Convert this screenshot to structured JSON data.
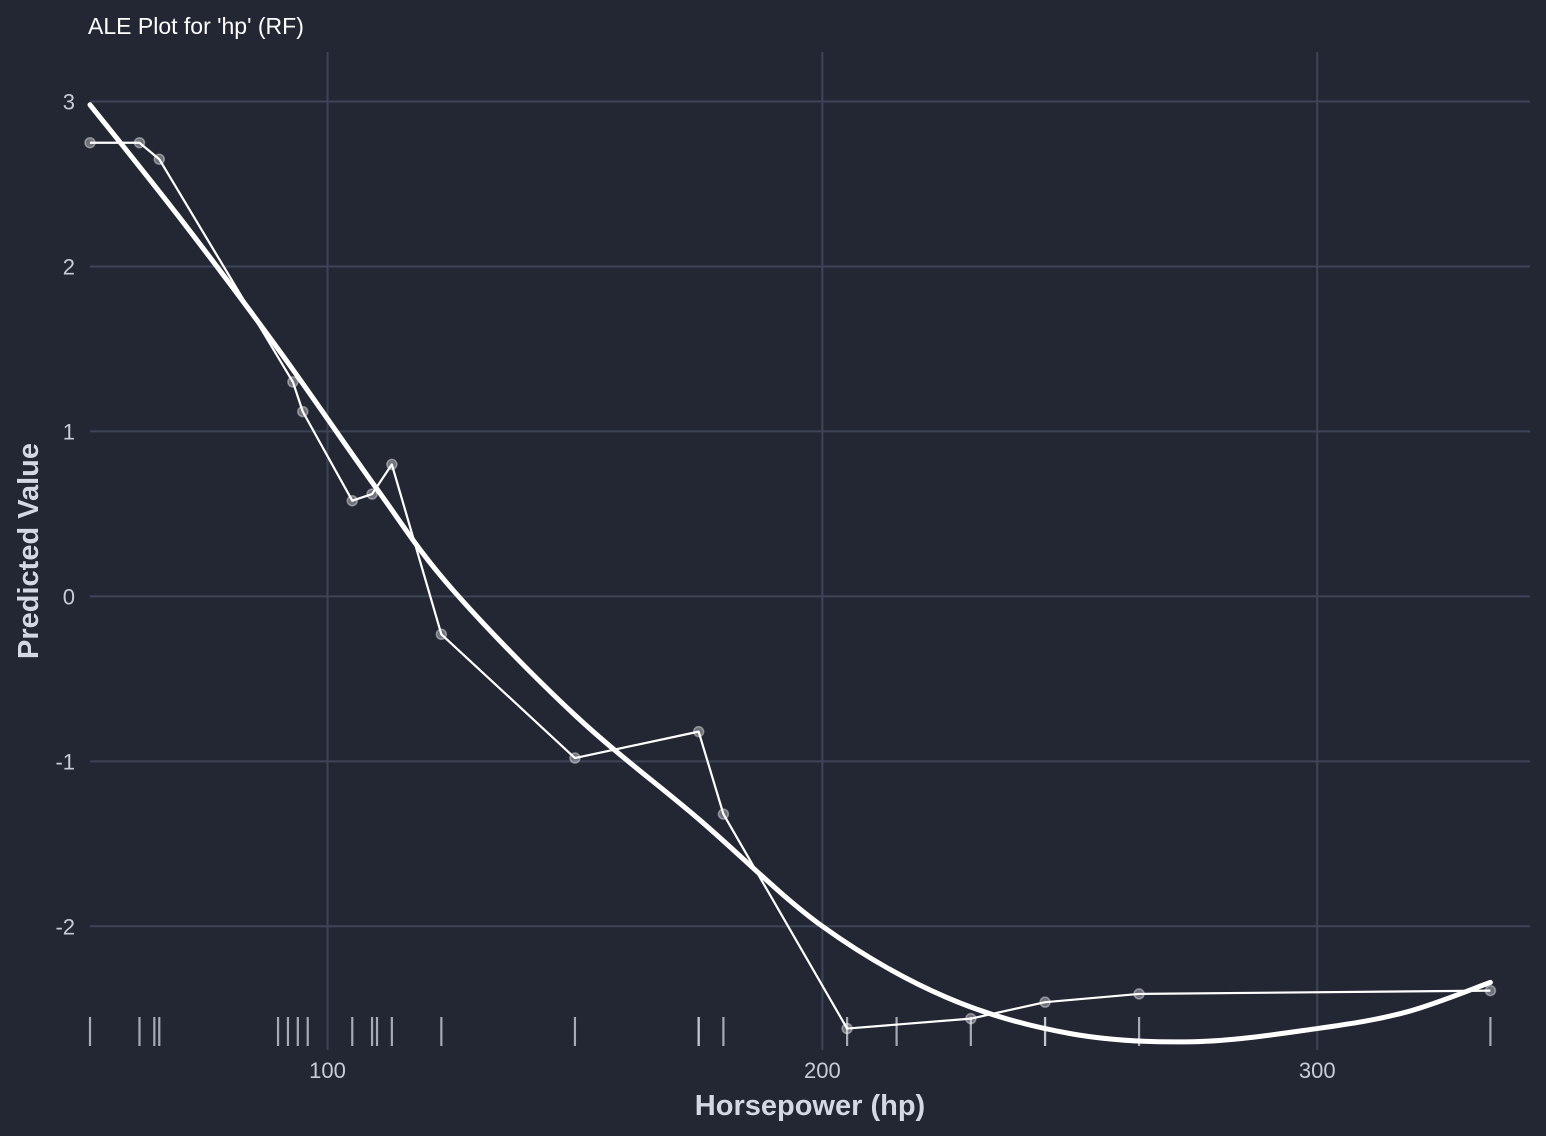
{
  "chart_data": {
    "type": "line",
    "title": "ALE Plot for 'hp' (RF)",
    "xlabel": "Horsepower (hp)",
    "ylabel": "Predicted Value",
    "xlim": [
      52,
      343
    ],
    "ylim": [
      -2.75,
      3.3
    ],
    "xticks": [
      100,
      200,
      300
    ],
    "xtick_labels": [
      "100",
      "200",
      "300"
    ],
    "yticks": [
      -2,
      -1,
      0,
      1,
      2,
      3
    ],
    "ytick_labels": [
      "-2",
      "-1",
      "0",
      "1",
      "2",
      "3"
    ],
    "grid": true,
    "legend": "none",
    "series": [
      {
        "kind": "ale-line-with-points",
        "x": [
          52,
          62,
          66,
          93,
          95,
          105,
          109,
          113,
          123,
          150,
          175,
          180,
          205,
          230,
          245,
          264,
          335
        ],
        "y": [
          2.75,
          2.75,
          2.65,
          1.3,
          1.12,
          0.58,
          0.62,
          0.8,
          -0.23,
          -0.98,
          -0.82,
          -1.32,
          -2.62,
          -2.56,
          -2.46,
          -2.41,
          -2.39
        ],
        "color": "#ffffff"
      },
      {
        "kind": "smooth-fit",
        "x": [
          52,
          70,
          90,
          110,
          125,
          150,
          175,
          200,
          225,
          250,
          275,
          300,
          318,
          335
        ],
        "y": [
          2.98,
          2.3,
          1.5,
          0.65,
          0.05,
          -0.72,
          -1.35,
          -2.0,
          -2.43,
          -2.65,
          -2.7,
          -2.62,
          -2.52,
          -2.34
        ],
        "color": "#ffffff"
      }
    ],
    "rug_x": [
      52,
      62,
      65,
      66,
      90,
      92,
      94,
      96,
      105,
      109,
      110,
      113,
      123,
      150,
      175,
      175,
      180,
      205,
      215,
      230,
      245,
      245,
      264,
      335
    ]
  }
}
